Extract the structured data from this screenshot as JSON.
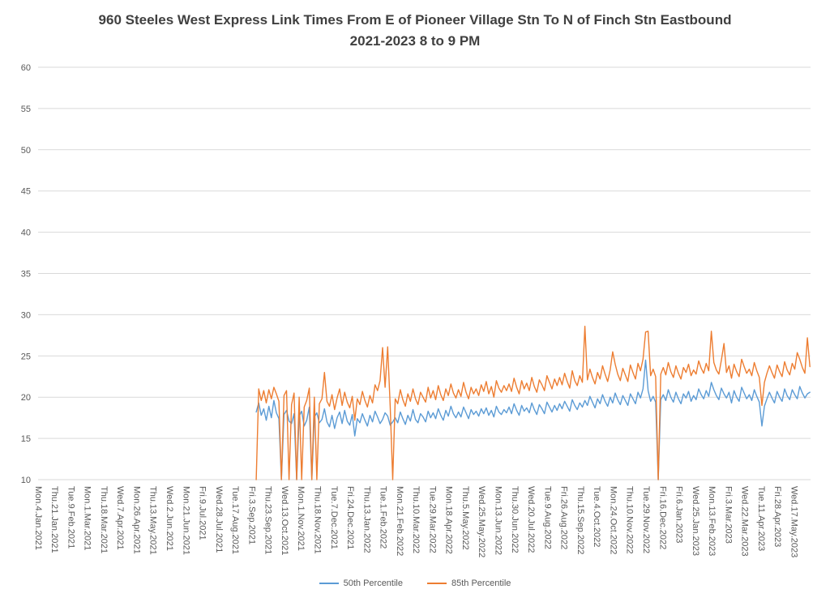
{
  "title": {
    "line1": "960 Steeles West Express Link Times From E of Pioneer Village Stn To N of Finch Stn Eastbound",
    "line2": "2021-2023 8 to 9 PM"
  },
  "colors": {
    "p50": "#5B9BD5",
    "p85": "#ED7D31",
    "grid": "#D9D9D9",
    "axis_text": "#595959",
    "title_text": "#404040",
    "background": "#FFFFFF"
  },
  "chart_data": {
    "type": "line",
    "title": "960 Steeles West Express Link Times From E of Pioneer Village Stn To N of Finch Stn Eastbound 2021-2023 8 to 9 PM",
    "xlabel": "",
    "ylabel": "",
    "ylim": [
      10,
      60
    ],
    "grid": true,
    "legend": {
      "position": "bottom",
      "entries": [
        "50th Percentile",
        "85th Percentile"
      ]
    },
    "y_axis": {
      "min": 10,
      "max": 60,
      "step": 5,
      "tick_labels": [
        60,
        55,
        50,
        45,
        40,
        35,
        30,
        25,
        20,
        15,
        10
      ]
    },
    "x_axis": {
      "points_per_tick": 13,
      "total_points": 611,
      "tick_labels": [
        "Mon.4.Jan.2021",
        "Thu.21.Jan.2021",
        "Tue.9.Feb.2021",
        "Mon.1.Mar.2021",
        "Thu.18.Mar.2021",
        "Wed.7.Apr.2021",
        "Mon.26.Apr.2021",
        "Thu.13.May.2021",
        "Wed.2.Jun.2021",
        "Mon.21.Jun.2021",
        "Fri.9.Jul.2021",
        "Wed.28.Jul.2021",
        "Tue.17.Aug.2021",
        "Fri.3.Sep.2021",
        "Thu.23.Sep.2021",
        "Wed.13.Oct.2021",
        "Mon.1.Nov.2021",
        "Thu.18.Nov.2021",
        "Tue.7.Dec.2021",
        "Fri.24.Dec.2021",
        "Thu.13.Jan.2022",
        "Tue.1.Feb.2022",
        "Mon.21.Feb.2022",
        "Thu.10.Mar.2022",
        "Tue.29.Mar.2022",
        "Mon.18.Apr.2022",
        "Thu.5.May.2022",
        "Wed.25.May.2022",
        "Mon.13.Jun.2022",
        "Thu.30.Jun.2022",
        "Wed.20.Jul.2022",
        "Tue.9.Aug.2022",
        "Fri.26.Aug.2022",
        "Thu.15.Sep.2022",
        "Tue.4.Oct.2022",
        "Mon.24.Oct.2022",
        "Thu.10.Nov.2022",
        "Tue.29.Nov.2022",
        "Fri.16.Dec.2022",
        "Fri.6.Jan.2023",
        "Wed.25.Jan.2023",
        "Mon.13.Feb.2023",
        "Fri.3.Mar.2023",
        "Wed.22.Mar.2023",
        "Tue.11.Apr.2023",
        "Fri.28.Apr.2023",
        "Wed.17.May.2023"
      ]
    },
    "series": [
      {
        "name": "50th Percentile",
        "color": "#5B9BD5",
        "x_start": 172,
        "x_step": 2,
        "values": [
          18.2,
          19.3,
          17.8,
          18.6,
          17.2,
          18.9,
          17.5,
          19.6,
          18.1,
          17.4,
          10.0,
          17.9,
          18.4,
          17.1,
          16.8,
          18.0,
          10.0,
          17.7,
          18.3,
          16.5,
          17.2,
          18.8,
          10.0,
          17.6,
          18.1,
          16.9,
          17.3,
          18.6,
          17.0,
          16.4,
          17.8,
          16.2,
          17.5,
          18.2,
          16.8,
          18.4,
          17.1,
          16.6,
          17.9,
          15.3,
          17.4,
          16.9,
          18.0,
          17.2,
          16.5,
          17.8,
          17.0,
          18.3,
          17.6,
          16.8,
          17.3,
          18.1,
          17.7,
          16.6,
          17.0,
          17.5,
          16.9,
          18.2,
          17.4,
          16.7,
          17.8,
          17.1,
          18.5,
          17.3,
          16.9,
          18.0,
          17.6,
          17.0,
          18.3,
          17.5,
          18.1,
          17.4,
          18.6,
          17.8,
          17.2,
          18.4,
          17.7,
          18.9,
          18.0,
          17.5,
          18.2,
          17.6,
          18.8,
          18.1,
          17.4,
          18.5,
          17.9,
          18.3,
          17.7,
          18.6,
          18.0,
          18.7,
          17.8,
          18.4,
          17.6,
          18.9,
          18.2,
          17.9,
          18.5,
          18.1,
          18.8,
          18.0,
          19.2,
          18.4,
          17.8,
          19.0,
          18.3,
          18.7,
          18.1,
          19.3,
          18.5,
          17.9,
          19.1,
          18.6,
          18.0,
          19.4,
          18.8,
          18.2,
          19.0,
          18.4,
          19.2,
          18.6,
          19.5,
          18.9,
          18.3,
          19.7,
          19.0,
          18.5,
          19.3,
          18.8,
          19.6,
          19.0,
          20.1,
          19.4,
          18.7,
          19.8,
          19.2,
          20.3,
          19.5,
          18.9,
          20.0,
          19.3,
          20.5,
          19.7,
          19.1,
          20.2,
          19.6,
          19.0,
          20.4,
          19.8,
          19.2,
          20.6,
          19.9,
          21.0,
          24.5,
          20.8,
          19.5,
          20.1,
          19.4,
          10.0,
          19.7,
          20.3,
          19.6,
          20.9,
          20.0,
          19.4,
          20.6,
          19.8,
          19.2,
          20.4,
          19.9,
          20.7,
          19.5,
          20.2,
          19.7,
          21.0,
          20.3,
          19.8,
          20.8,
          20.1,
          21.8,
          20.9,
          20.2,
          19.7,
          21.1,
          20.4,
          19.9,
          20.6,
          19.3,
          20.8,
          20.0,
          19.5,
          21.2,
          20.5,
          19.8,
          20.3,
          19.6,
          20.9,
          20.1,
          19.4,
          16.5,
          18.9,
          19.8,
          20.6,
          19.9,
          19.3,
          20.7,
          20.0,
          19.5,
          21.0,
          20.2,
          19.7,
          20.9,
          20.3,
          19.8,
          21.3,
          20.5,
          19.9,
          20.4,
          20.6
        ]
      },
      {
        "name": "85th Percentile",
        "color": "#ED7D31",
        "x_start": 172,
        "x_step": 2,
        "values": [
          10.0,
          21.0,
          19.6,
          20.8,
          19.3,
          20.9,
          19.8,
          21.2,
          20.4,
          19.5,
          10.0,
          20.2,
          20.8,
          10.0,
          19.1,
          20.5,
          10.0,
          20.0,
          10.0,
          18.8,
          19.6,
          21.1,
          10.0,
          20.0,
          10.0,
          19.2,
          19.8,
          23.0,
          19.5,
          18.9,
          20.3,
          18.5,
          19.9,
          21.0,
          19.0,
          20.6,
          19.4,
          18.7,
          20.1,
          17.2,
          19.8,
          19.1,
          20.7,
          19.6,
          18.8,
          20.2,
          19.3,
          21.5,
          20.8,
          22.0,
          26.0,
          21.2,
          26.1,
          18.9,
          10.0,
          19.8,
          19.2,
          20.9,
          19.7,
          18.9,
          20.4,
          19.5,
          21.0,
          19.8,
          19.1,
          20.6,
          20.0,
          19.4,
          21.2,
          19.9,
          20.8,
          19.7,
          21.4,
          20.3,
          19.6,
          21.0,
          20.2,
          21.6,
          20.5,
          19.9,
          20.9,
          20.1,
          21.8,
          20.6,
          19.8,
          21.2,
          20.4,
          21.0,
          20.2,
          21.5,
          20.7,
          21.9,
          20.4,
          21.3,
          20.0,
          22.0,
          21.1,
          20.6,
          21.4,
          20.8,
          21.6,
          20.7,
          22.3,
          21.2,
          20.4,
          22.0,
          21.0,
          21.7,
          20.8,
          22.4,
          21.3,
          20.6,
          22.1,
          21.5,
          20.8,
          22.6,
          21.8,
          21.0,
          22.2,
          21.4,
          22.4,
          21.5,
          22.9,
          21.9,
          21.1,
          23.2,
          22.0,
          21.4,
          22.6,
          21.8,
          28.6,
          22.1,
          23.4,
          22.4,
          21.6,
          23.0,
          22.2,
          23.8,
          22.8,
          21.9,
          23.3,
          25.5,
          24.0,
          22.8,
          22.0,
          23.5,
          22.7,
          21.9,
          23.9,
          23.0,
          22.2,
          24.1,
          23.2,
          24.6,
          27.9,
          28.0,
          22.6,
          23.4,
          22.5,
          10.0,
          22.8,
          23.6,
          22.7,
          24.2,
          23.1,
          22.4,
          23.8,
          22.9,
          22.2,
          23.6,
          23.0,
          24.0,
          22.6,
          23.3,
          22.8,
          24.4,
          23.5,
          22.9,
          24.1,
          23.2,
          28.0,
          24.2,
          23.3,
          22.8,
          24.5,
          26.5,
          23.0,
          23.8,
          22.3,
          24.0,
          23.1,
          22.5,
          24.6,
          23.7,
          22.9,
          23.4,
          22.6,
          24.2,
          23.2,
          22.4,
          19.0,
          21.8,
          22.9,
          23.8,
          23.0,
          22.3,
          23.9,
          23.1,
          22.5,
          24.3,
          23.3,
          22.7,
          24.1,
          23.4,
          25.4,
          24.6,
          23.6,
          22.9,
          27.2,
          23.7
        ]
      }
    ]
  }
}
